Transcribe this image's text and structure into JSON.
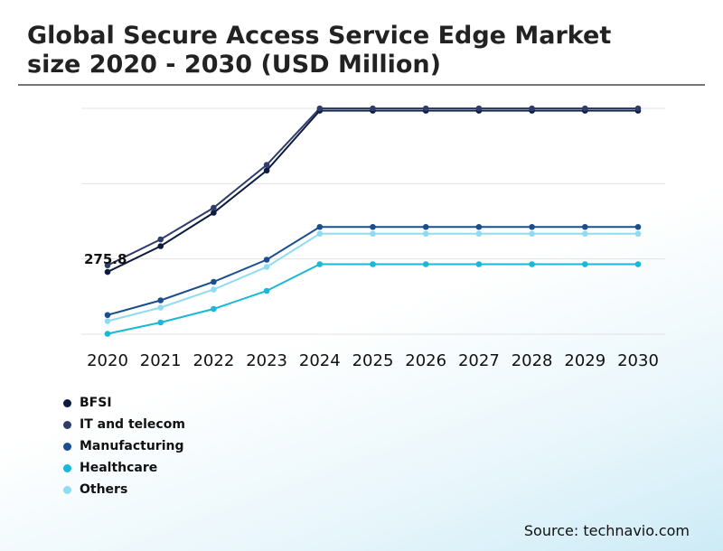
{
  "header": {
    "title_line1": "Global Secure Access Service Edge Market",
    "title_line2": "size 2020 - 2030 (USD Million)"
  },
  "footer": {
    "source": "Source: technavio.com"
  },
  "chart_data": {
    "type": "line",
    "title": "Global Secure Access Service Edge Market size 2020 - 2030 (USD Million)",
    "xlabel": "",
    "ylabel": "",
    "categories": [
      "2020",
      "2021",
      "2022",
      "2023",
      "2024",
      "2025",
      "2026",
      "2027",
      "2028",
      "2029",
      "2030"
    ],
    "ylim": [
      0,
      1000
    ],
    "grid": true,
    "annotation": {
      "text": "275.8",
      "series": "BFSI",
      "category": "2020"
    },
    "series": [
      {
        "name": "BFSI",
        "color": "#0d1b3e",
        "values": [
          275.8,
          390,
          538,
          725,
          990,
          990,
          990,
          990,
          990,
          990,
          990
        ]
      },
      {
        "name": "IT and telecom",
        "color": "#2e3d6b",
        "values": [
          305,
          420,
          560,
          750,
          1000,
          1000,
          1000,
          1000,
          1000,
          1000,
          1000
        ]
      },
      {
        "name": "Manufacturing",
        "color": "#1a4e8f",
        "values": [
          85,
          150,
          232,
          330,
          475,
          475,
          475,
          475,
          475,
          475,
          475
        ]
      },
      {
        "name": "Healthcare",
        "color": "#17b8d8",
        "values": [
          2,
          52,
          112,
          192,
          310,
          310,
          310,
          310,
          310,
          310,
          310
        ]
      },
      {
        "name": "Others",
        "color": "#8fdcf2",
        "values": [
          58,
          118,
          198,
          298,
          445,
          445,
          445,
          445,
          445,
          445,
          445
        ]
      }
    ]
  }
}
